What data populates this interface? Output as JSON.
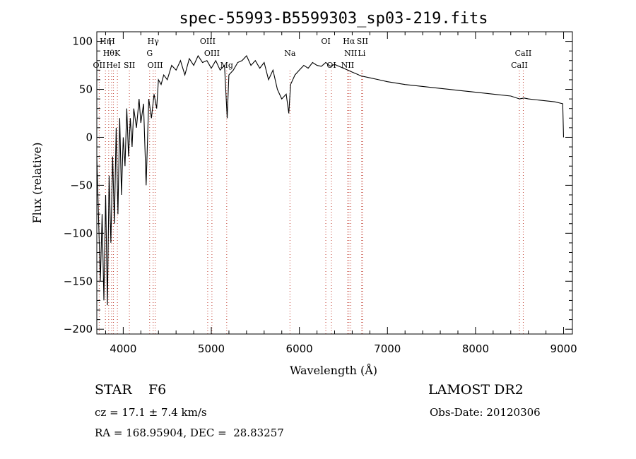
{
  "chart_data": {
    "type": "line",
    "title": "spec-55993-B5599303_sp03-219.fits",
    "xlabel": "Wavelength (Å)",
    "ylabel": "Flux (relative)",
    "xlim": [
      3700,
      9100
    ],
    "ylim": [
      -205,
      110
    ],
    "xticks": [
      4000,
      5000,
      6000,
      7000,
      8000,
      9000
    ],
    "yticks": [
      -200,
      -150,
      -100,
      -50,
      0,
      50,
      100
    ],
    "grid": false,
    "series": [
      {
        "x": [
          3700,
          3740,
          3760,
          3780,
          3800,
          3820,
          3840,
          3860,
          3880,
          3900,
          3920,
          3940,
          3960,
          3980,
          4000,
          4020,
          4040,
          4060,
          4080,
          4100,
          4120,
          4150,
          4180,
          4200,
          4230,
          4260,
          4290,
          4320,
          4350,
          4380,
          4400,
          4430,
          4460,
          4500,
          4550,
          4600,
          4650,
          4700,
          4750,
          4800,
          4850,
          4900,
          4950,
          5000,
          5050,
          5100,
          5150,
          5180,
          5200,
          5250,
          5300,
          5350,
          5400,
          5450,
          5500,
          5550,
          5600,
          5650,
          5700,
          5750,
          5800,
          5850,
          5880,
          5900,
          5950,
          6000,
          6050,
          6100,
          6150,
          6200,
          6250,
          6300,
          6350,
          6400,
          6450,
          6500,
          6550,
          6600,
          6650,
          6700,
          6800,
          6900,
          7000,
          7200,
          7400,
          7600,
          7800,
          8000,
          8200,
          8400,
          8500,
          8550,
          8600,
          8700,
          8800,
          8900,
          8990,
          9000
        ],
        "y": [
          -20,
          -150,
          -80,
          -170,
          -60,
          -175,
          -40,
          -110,
          -20,
          -90,
          10,
          -80,
          20,
          -60,
          0,
          -30,
          30,
          -20,
          20,
          -10,
          30,
          10,
          40,
          15,
          35,
          -50,
          40,
          20,
          45,
          30,
          60,
          55,
          65,
          60,
          75,
          70,
          80,
          65,
          82,
          75,
          85,
          78,
          80,
          72,
          80,
          70,
          75,
          20,
          65,
          70,
          78,
          80,
          85,
          75,
          80,
          72,
          78,
          60,
          70,
          50,
          40,
          45,
          25,
          55,
          65,
          70,
          75,
          72,
          78,
          75,
          74,
          78,
          74,
          76,
          74,
          72,
          70,
          68,
          66,
          64,
          62,
          60,
          58,
          55,
          53,
          51,
          49,
          47,
          45,
          43,
          40,
          41,
          40,
          39,
          38,
          37,
          35,
          0
        ]
      }
    ],
    "line_markers": [
      {
        "wl": 3727,
        "label": "OII",
        "row": 3
      },
      {
        "wl": 3798,
        "label": "Hη",
        "row": 1
      },
      {
        "wl": 3835,
        "label": "Hθ",
        "row": 2
      },
      {
        "wl": 3868,
        "label": "H",
        "row": 1
      },
      {
        "wl": 3889,
        "label": "HeI",
        "row": 3
      },
      {
        "wl": 3934,
        "label": "K",
        "row": 2
      },
      {
        "wl": 4070,
        "label": "SII",
        "row": 3
      },
      {
        "wl": 4300,
        "label": "G",
        "row": 2
      },
      {
        "wl": 4340,
        "label": "Hγ",
        "row": 1
      },
      {
        "wl": 4363,
        "label": "OIII",
        "row": 3
      },
      {
        "wl": 4959,
        "label": "OIII",
        "row": 1
      },
      {
        "wl": 5007,
        "label": "OIII",
        "row": 2
      },
      {
        "wl": 5175,
        "label": "Mg",
        "row": 3
      },
      {
        "wl": 5893,
        "label": "Na",
        "row": 2
      },
      {
        "wl": 6300,
        "label": "OI",
        "row": 1
      },
      {
        "wl": 6364,
        "label": "OI",
        "row": 3
      },
      {
        "wl": 6548,
        "label": "NII",
        "row": 3
      },
      {
        "wl": 6563,
        "label": "Hα",
        "row": 1
      },
      {
        "wl": 6583,
        "label": "NII",
        "row": 2
      },
      {
        "wl": 6716,
        "label": "SII",
        "row": 1
      },
      {
        "wl": 6708,
        "label": "Li",
        "row": 2
      },
      {
        "wl": 8498,
        "label": "CaII",
        "row": 3
      },
      {
        "wl": 8542,
        "label": "CaII",
        "row": 2
      }
    ]
  },
  "info": {
    "class_label": "STAR",
    "subclass": "F6",
    "survey": "LAMOST DR2",
    "cz": "cz = 17.1 ± 7.4 km/s",
    "obs_date": "Obs-Date: 20120306",
    "coords": "RA = 168.95904, DEC =  28.83257"
  },
  "colors": {
    "marker": "#c0392b",
    "spectrum": "#000000"
  }
}
